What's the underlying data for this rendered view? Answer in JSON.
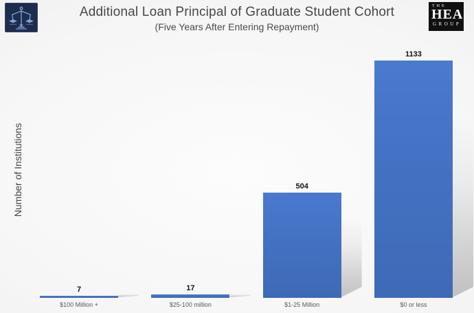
{
  "header": {
    "title": "Additional Loan Principal of Graduate Student Cohort",
    "subtitle": "(Five Years After Entering Repayment)",
    "left_logo": {
      "icon": "scales-of-justice",
      "background": "#1e2c4d",
      "icon_color": "#7ba3d8"
    },
    "right_logo": {
      "line1": "THE",
      "line2": "HEA",
      "line3": "GROUP",
      "background": "#101010",
      "text_color": "#ffffff"
    }
  },
  "chart_data": {
    "type": "bar",
    "title": "Additional Loan Principal of Graduate Student Cohort",
    "subtitle": "(Five Years After Entering Repayment)",
    "categories": [
      "$100 Million +",
      "$25-100 million",
      "$1-25 Million",
      "$0 or less"
    ],
    "values": [
      7,
      17,
      504,
      1133
    ],
    "data_labels_shown": true,
    "xlabel": "",
    "ylabel": "Number of Institutions",
    "ylim": [
      0,
      1200
    ],
    "grid": false,
    "legend": null,
    "bar_color": "#4472c4"
  }
}
